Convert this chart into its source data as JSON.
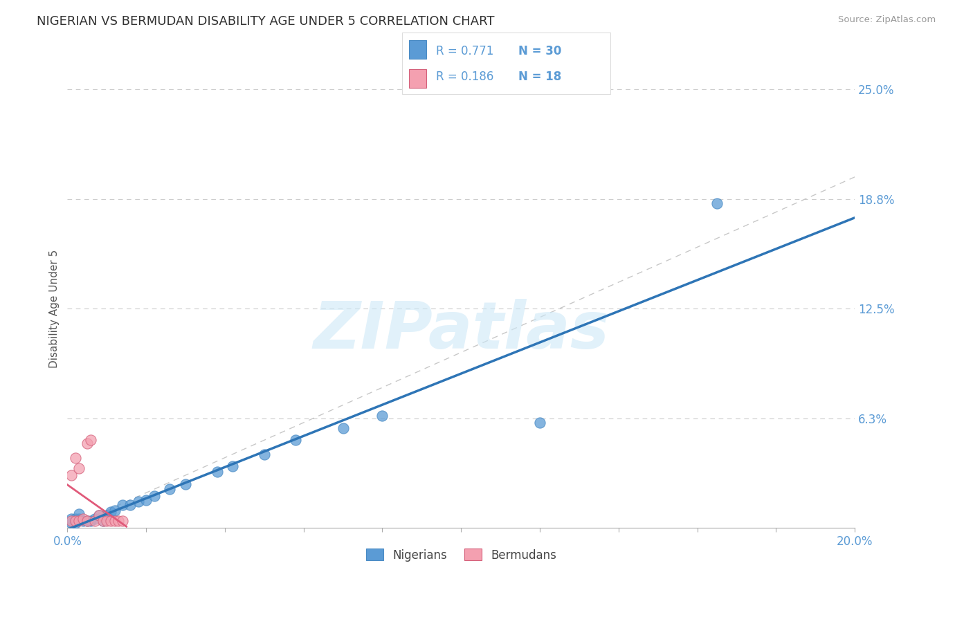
{
  "title": "NIGERIAN VS BERMUDAN DISABILITY AGE UNDER 5 CORRELATION CHART",
  "source_text": "Source: ZipAtlas.com",
  "ylabel": "Disability Age Under 5",
  "xmin": 0.0,
  "xmax": 0.2,
  "ymin": 0.0,
  "ymax": 0.25,
  "ytick_positions": [
    0.0,
    0.0625,
    0.125,
    0.1875,
    0.25
  ],
  "ytick_labels": [
    "",
    "6.3%",
    "12.5%",
    "18.8%",
    "25.0%"
  ],
  "background_color": "#ffffff",
  "grid_color": "#cccccc",
  "title_color": "#333333",
  "legend_r1": "R = 0.771",
  "legend_n1": "N = 30",
  "legend_r2": "R = 0.186",
  "legend_n2": "N = 18",
  "blue_color": "#5b9bd5",
  "pink_color": "#f4a0b0",
  "blue_line_color": "#2e75b6",
  "pink_line_color": "#e05a7a",
  "watermark_color": "#cde8f7",
  "nigerian_x": [
    0.001,
    0.001,
    0.002,
    0.002,
    0.003,
    0.003,
    0.004,
    0.005,
    0.006,
    0.007,
    0.008,
    0.009,
    0.01,
    0.011,
    0.012,
    0.014,
    0.016,
    0.018,
    0.02,
    0.022,
    0.026,
    0.03,
    0.038,
    0.042,
    0.05,
    0.058,
    0.07,
    0.08,
    0.12,
    0.165
  ],
  "nigerian_y": [
    0.003,
    0.005,
    0.003,
    0.005,
    0.005,
    0.008,
    0.004,
    0.004,
    0.004,
    0.005,
    0.007,
    0.004,
    0.007,
    0.009,
    0.01,
    0.013,
    0.013,
    0.015,
    0.016,
    0.018,
    0.022,
    0.025,
    0.032,
    0.035,
    0.042,
    0.05,
    0.057,
    0.064,
    0.06,
    0.185
  ],
  "bermudan_x": [
    0.001,
    0.001,
    0.002,
    0.002,
    0.003,
    0.003,
    0.004,
    0.005,
    0.005,
    0.006,
    0.007,
    0.008,
    0.009,
    0.01,
    0.011,
    0.012,
    0.013,
    0.014
  ],
  "bermudan_y": [
    0.004,
    0.03,
    0.004,
    0.04,
    0.004,
    0.034,
    0.005,
    0.048,
    0.004,
    0.05,
    0.004,
    0.007,
    0.004,
    0.004,
    0.004,
    0.004,
    0.004,
    0.004
  ],
  "point_size": 120,
  "blue_edge_color": "#4a8bc4",
  "pink_edge_color": "#d4607a"
}
